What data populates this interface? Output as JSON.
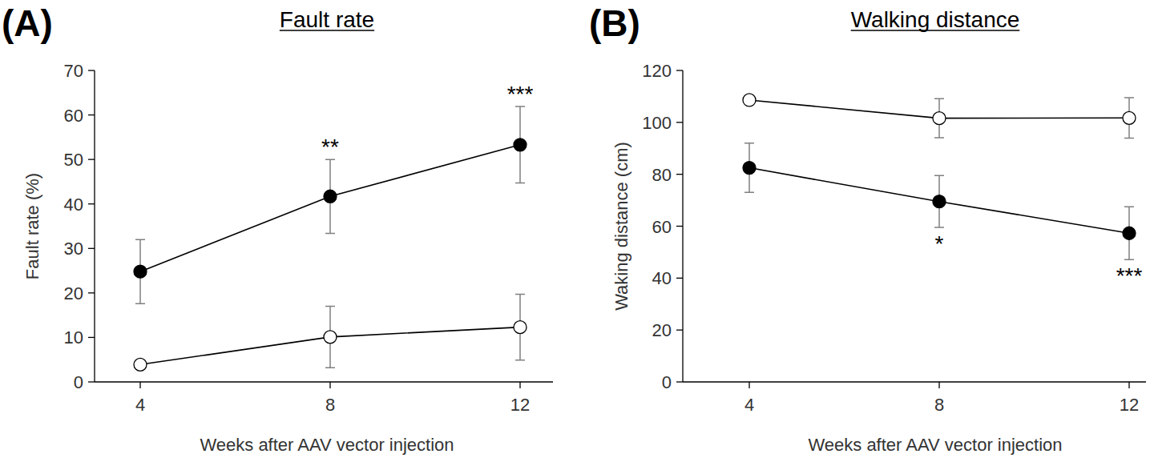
{
  "chart_data": [
    {
      "type": "line",
      "panel": "(A)",
      "title": "Fault rate",
      "x_label": "Weeks after AAV vector injection",
      "y_label": "Fault rate (%)",
      "categories": [
        "4",
        "8",
        "12"
      ],
      "ylim": [
        0,
        70
      ],
      "yticks": [
        0,
        10,
        20,
        30,
        40,
        50,
        60,
        70
      ],
      "grid": false,
      "series": [
        {
          "color": "#000000",
          "marker": "circle",
          "values": [
            24.8,
            41.7,
            53.3
          ],
          "errors": [
            7.2,
            8.3,
            8.6
          ]
        },
        {
          "color": "#ffffff",
          "marker": "circle",
          "values": [
            3.9,
            10.1,
            12.3
          ],
          "errors": [
            1.0,
            6.9,
            7.4
          ]
        }
      ],
      "annotations": [
        {
          "text": "**",
          "x": "8",
          "position": "above"
        },
        {
          "text": "***",
          "x": "12",
          "position": "above"
        }
      ]
    },
    {
      "type": "line",
      "panel": "(B)",
      "title": "Walking distance",
      "x_label": "Weeks after AAV vector injection",
      "y_label": "Waking distance (cm)",
      "categories": [
        "4",
        "8",
        "12"
      ],
      "ylim": [
        0,
        120
      ],
      "yticks": [
        0,
        20,
        40,
        60,
        80,
        100,
        120
      ],
      "grid": false,
      "series": [
        {
          "color": "#000000",
          "marker": "circle",
          "values": [
            82.5,
            69.5,
            57.3
          ],
          "errors": [
            9.5,
            10.0,
            10.2
          ]
        },
        {
          "color": "#ffffff",
          "marker": "circle",
          "values": [
            108.6,
            101.6,
            101.7
          ],
          "errors": [
            1.0,
            7.5,
            7.8
          ]
        }
      ],
      "annotations": [
        {
          "text": "*",
          "x": "8",
          "position": "below"
        },
        {
          "text": "***",
          "x": "12",
          "position": "below"
        }
      ]
    }
  ]
}
